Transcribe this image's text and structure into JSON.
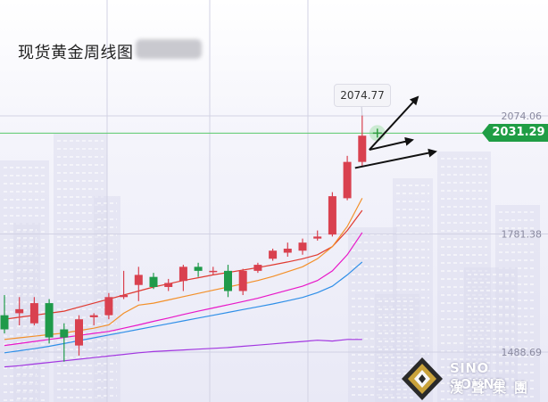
{
  "title": "现货黄金周线图",
  "last_high_label": "2074.77",
  "current_price_label": "2031.29",
  "logo": {
    "en": "SINO SOUND",
    "cn": "漢聲集團"
  },
  "colors": {
    "bull": "#d9414f",
    "bear": "#1f9a4a",
    "ma_red": "#e03a30",
    "ma_orange": "#f39029",
    "ma_magenta": "#e817c8",
    "ma_blue": "#2f8fe8",
    "ma_purple": "#a236e0",
    "current_line": "#59c86a"
  },
  "chart_data": {
    "type": "candlestick",
    "title": "现货黄金周线图",
    "y_tick_labels": [
      "2074.06",
      "1781.38",
      "1488.69"
    ],
    "y_ticks": [
      2074.06,
      1781.38,
      1488.69
    ],
    "ylim": [
      1465,
      2200
    ],
    "current_price": 2031.29,
    "high_marker": 2074.77,
    "candles": [
      {
        "open": 1580,
        "high": 1630,
        "low": 1535,
        "close": 1545
      },
      {
        "open": 1585,
        "high": 1625,
        "low": 1555,
        "close": 1595
      },
      {
        "open": 1560,
        "high": 1625,
        "low": 1555,
        "close": 1610
      },
      {
        "open": 1610,
        "high": 1620,
        "low": 1510,
        "close": 1525
      },
      {
        "open": 1545,
        "high": 1560,
        "low": 1465,
        "close": 1525
      },
      {
        "open": 1505,
        "high": 1580,
        "low": 1480,
        "close": 1570
      },
      {
        "open": 1575,
        "high": 1585,
        "low": 1555,
        "close": 1580
      },
      {
        "open": 1580,
        "high": 1635,
        "low": 1570,
        "close": 1625
      },
      {
        "open": 1625,
        "high": 1690,
        "low": 1620,
        "close": 1630
      },
      {
        "open": 1655,
        "high": 1700,
        "low": 1615,
        "close": 1680
      },
      {
        "open": 1675,
        "high": 1685,
        "low": 1645,
        "close": 1650
      },
      {
        "open": 1650,
        "high": 1670,
        "low": 1640,
        "close": 1660
      },
      {
        "open": 1665,
        "high": 1705,
        "low": 1640,
        "close": 1700
      },
      {
        "open": 1700,
        "high": 1710,
        "low": 1675,
        "close": 1690
      },
      {
        "open": 1690,
        "high": 1700,
        "low": 1680,
        "close": 1690
      },
      {
        "open": 1690,
        "high": 1705,
        "low": 1625,
        "close": 1640
      },
      {
        "open": 1640,
        "high": 1695,
        "low": 1630,
        "close": 1690
      },
      {
        "open": 1690,
        "high": 1710,
        "low": 1685,
        "close": 1705
      },
      {
        "open": 1720,
        "high": 1745,
        "low": 1715,
        "close": 1740
      },
      {
        "open": 1735,
        "high": 1760,
        "low": 1725,
        "close": 1745
      },
      {
        "open": 1740,
        "high": 1770,
        "low": 1730,
        "close": 1760
      },
      {
        "open": 1770,
        "high": 1790,
        "low": 1765,
        "close": 1775
      },
      {
        "open": 1780,
        "high": 1885,
        "low": 1775,
        "close": 1875
      },
      {
        "open": 1870,
        "high": 1975,
        "low": 1865,
        "close": 1960
      },
      {
        "open": 1960,
        "high": 2075,
        "low": 1950,
        "close": 2025
      }
    ],
    "moving_averages": [
      {
        "color": "#e03a30",
        "values": [
          1570,
          1575,
          1580,
          1585,
          1590,
          1600,
          1610,
          1620,
          1630,
          1640,
          1650,
          1658,
          1666,
          1673,
          1680,
          1686,
          1692,
          1698,
          1705,
          1712,
          1720,
          1730,
          1750,
          1790,
          1840
        ]
      },
      {
        "color": "#f39029",
        "values": [
          1520,
          1524,
          1528,
          1532,
          1536,
          1542,
          1548,
          1556,
          1585,
          1605,
          1610,
          1618,
          1626,
          1634,
          1642,
          1650,
          1658,
          1666,
          1676,
          1688,
          1700,
          1720,
          1750,
          1800,
          1870
        ]
      },
      {
        "color": "#e817c8",
        "values": [
          1505,
          1510,
          1515,
          1520,
          1525,
          1530,
          1535,
          1540,
          1548,
          1556,
          1565,
          1573,
          1582,
          1590,
          1598,
          1606,
          1614,
          1622,
          1632,
          1642,
          1652,
          1666,
          1690,
          1730,
          1785
        ]
      },
      {
        "color": "#2f8fe8",
        "values": [
          1487,
          1492,
          1497,
          1503,
          1510,
          1517,
          1524,
          1531,
          1538,
          1545,
          1552,
          1559,
          1566,
          1573,
          1580,
          1587,
          1594,
          1601,
          1608,
          1616,
          1624,
          1636,
          1652,
          1680,
          1712
        ]
      },
      {
        "color": "#a236e0",
        "values": [
          1452,
          1455,
          1459,
          1463,
          1467,
          1471,
          1475,
          1479,
          1483,
          1487,
          1490,
          1492,
          1494,
          1496,
          1498,
          1500,
          1503,
          1506,
          1509,
          1512,
          1515,
          1518,
          1516,
          1520,
          1520
        ]
      }
    ]
  }
}
